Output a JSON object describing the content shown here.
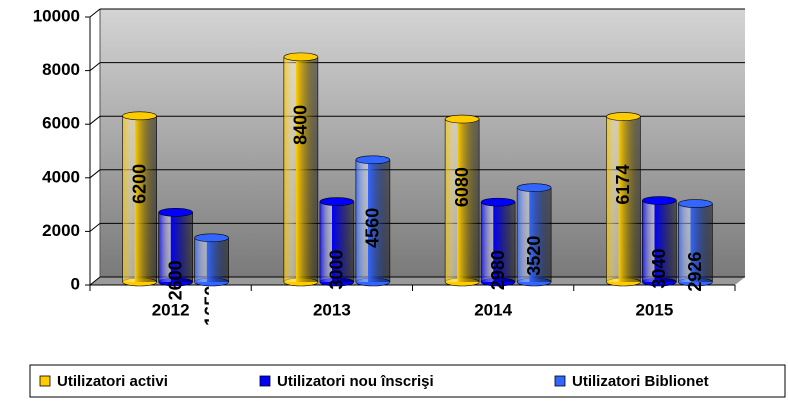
{
  "chart_data": {
    "type": "bar",
    "categories": [
      "2012",
      "2013",
      "2014",
      "2015"
    ],
    "series": [
      {
        "name": "Utilizatori activi",
        "color": "#FFCC00",
        "values": [
          6200,
          8400,
          6080,
          6174
        ]
      },
      {
        "name": "Utilizatori nou înscrişi",
        "color": "#0000FF",
        "values": [
          2600,
          3000,
          2980,
          3040
        ]
      },
      {
        "name": "Utilizatori Biblionet",
        "color": "#3366FF",
        "values": [
          1650,
          4560,
          3520,
          2926
        ]
      }
    ],
    "ylim": [
      0,
      10000
    ],
    "yticks": [
      0,
      2000,
      4000,
      6000,
      8000,
      10000
    ],
    "grid": true,
    "legend": "bottom"
  }
}
